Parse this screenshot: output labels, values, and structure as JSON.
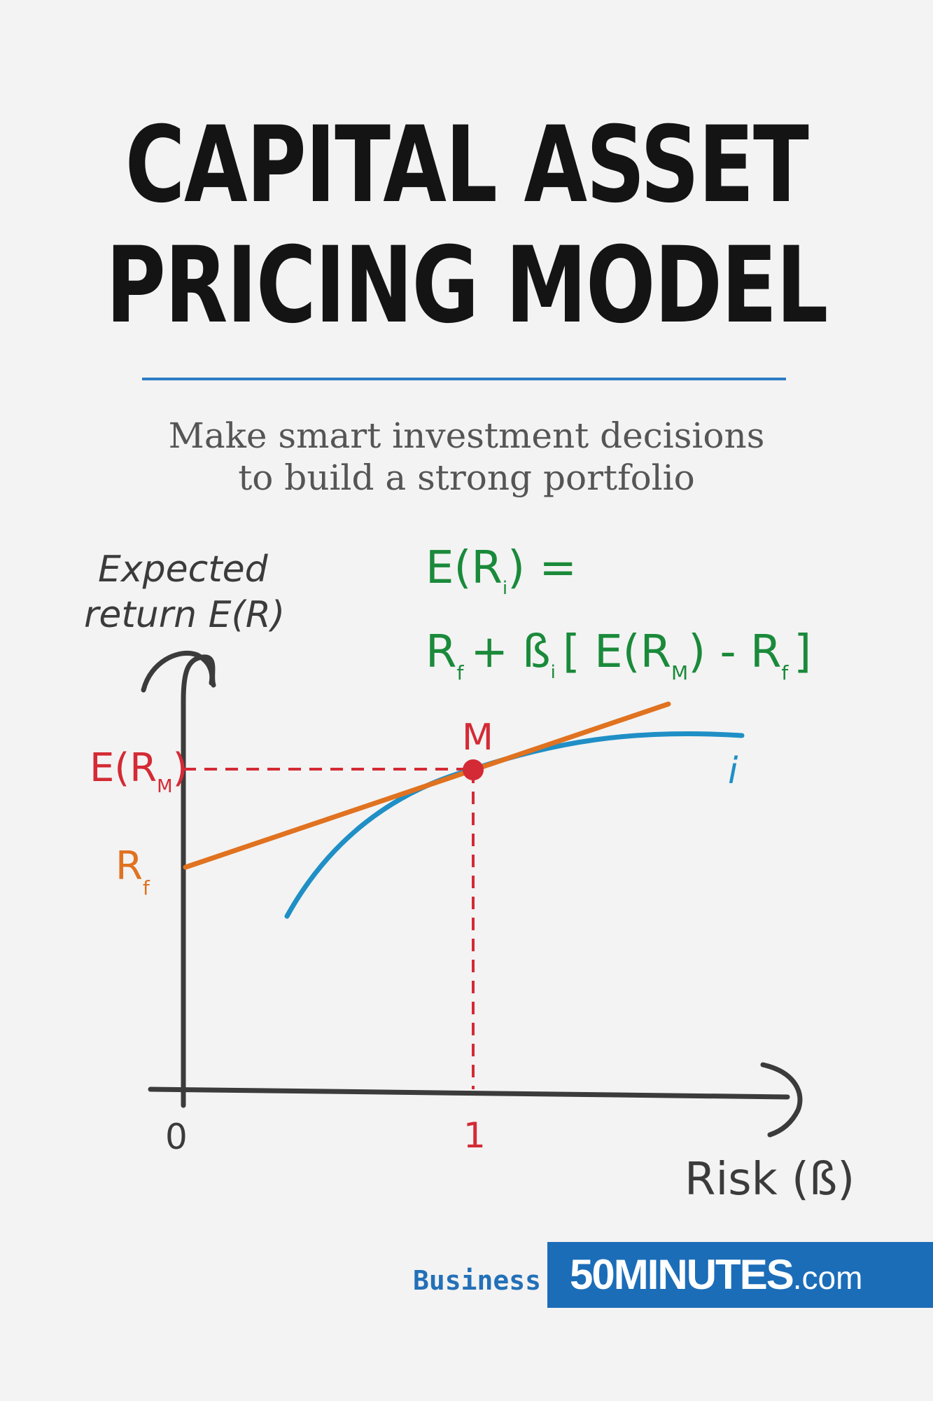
{
  "title": {
    "line1": "CAPITAL ASSET",
    "line2": "PRICING MODEL"
  },
  "subtitle": {
    "line1": "Make smart investment decisions",
    "line2": "to build a strong portfolio"
  },
  "diagram": {
    "y_axis_label_line1": "Expected",
    "y_axis_label_line2": "return E(R)",
    "x_axis_label": "Risk (ß)",
    "x_tick_0": "0",
    "x_tick_1": "1",
    "formula_lhs": "E(R",
    "formula_lhs_sub": "i",
    "formula_lhs_end": ") =",
    "formula_rhs": {
      "rf": "R",
      "rf_sub": "f",
      "plus_beta": "+ ß",
      "beta_sub": "i",
      "bracket_open": "[ E(R",
      "m_sub": "M",
      "minus": ") - R",
      "rf2_sub": "f",
      "bracket_close": "]"
    },
    "market_point_label": "M",
    "erm_label": "E(R",
    "erm_sub": "M",
    "erm_end": ")",
    "rf_label": "R",
    "rf_label_sub": "f",
    "curve_label": "i",
    "colors": {
      "axis": "#3b3b3b",
      "formula": "#1a8a3a",
      "market": "#d42a35",
      "sml": "#e07220",
      "curve": "#1f8fc6"
    }
  },
  "footer": {
    "category": "Business",
    "brand_main": "50MINUTES",
    "brand_suffix": ".com"
  }
}
